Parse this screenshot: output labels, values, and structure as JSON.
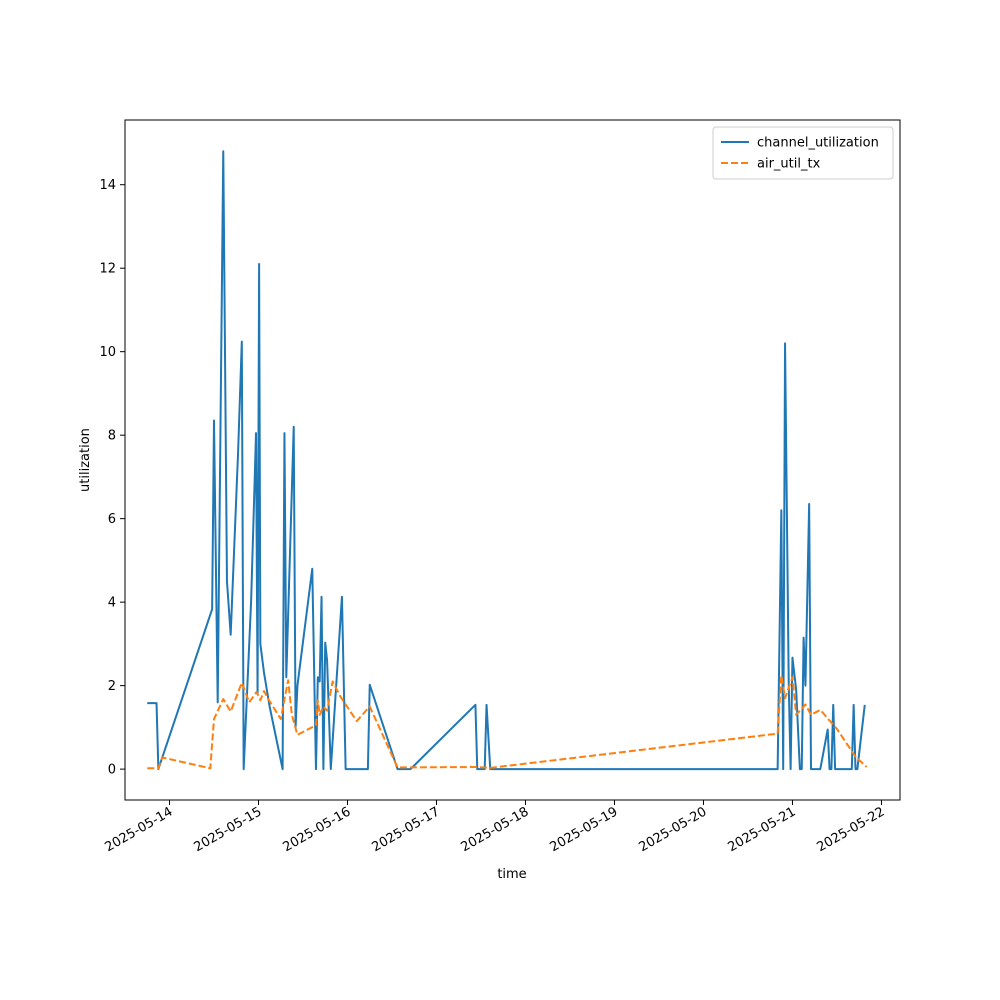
{
  "chart_data": {
    "type": "line",
    "xlabel": "time",
    "ylabel": "utilization",
    "x_axis": {
      "kind": "date",
      "range": [
        "2025-05-13 12:00",
        "2025-05-22 05:00"
      ],
      "ticks": [
        "2025-05-14",
        "2025-05-15",
        "2025-05-16",
        "2025-05-17",
        "2025-05-18",
        "2025-05-19",
        "2025-05-20",
        "2025-05-21",
        "2025-05-22"
      ]
    },
    "y_axis": {
      "range": [
        -0.74,
        15.55
      ],
      "ticks": [
        0,
        2,
        4,
        6,
        8,
        10,
        12,
        14
      ]
    },
    "grid": false,
    "legend": "top-right",
    "series": [
      {
        "name": "channel_utilization",
        "color": "#1f77b4",
        "style": "solid",
        "points": [
          [
            "2025-05-13 18:00",
            1.58
          ],
          [
            "2025-05-13 20:30",
            1.58
          ],
          [
            "2025-05-13 21:00",
            0.0
          ],
          [
            "2025-05-14 11:30",
            3.83
          ],
          [
            "2025-05-14 12:00",
            8.35
          ],
          [
            "2025-05-14 13:00",
            1.6
          ],
          [
            "2025-05-14 14:30",
            14.8
          ],
          [
            "2025-05-14 15:30",
            4.5
          ],
          [
            "2025-05-14 16:30",
            3.22
          ],
          [
            "2025-05-14 18:30",
            7.6
          ],
          [
            "2025-05-14 19:30",
            10.24
          ],
          [
            "2025-05-14 20:00",
            0.0
          ],
          [
            "2025-05-14 22:00",
            4.0
          ],
          [
            "2025-05-14 22:40",
            6.0
          ],
          [
            "2025-05-14 23:20",
            8.05
          ],
          [
            "2025-05-14 23:45",
            1.8
          ],
          [
            "2025-05-15 00:10",
            12.1
          ],
          [
            "2025-05-15 00:30",
            3.0
          ],
          [
            "2025-05-15 01:30",
            2.3
          ],
          [
            "2025-05-15 03:00",
            1.5
          ],
          [
            "2025-05-15 06:30",
            0.0
          ],
          [
            "2025-05-15 07:00",
            8.05
          ],
          [
            "2025-05-15 07:30",
            2.2
          ],
          [
            "2025-05-15 09:30",
            8.2
          ],
          [
            "2025-05-15 10:00",
            1.0
          ],
          [
            "2025-05-15 10:30",
            2.0
          ],
          [
            "2025-05-15 14:30",
            4.8
          ],
          [
            "2025-05-15 15:30",
            0.0
          ],
          [
            "2025-05-15 16:00",
            2.2
          ],
          [
            "2025-05-15 16:30",
            2.1
          ],
          [
            "2025-05-15 17:00",
            4.13
          ],
          [
            "2025-05-15 17:30",
            0.0
          ],
          [
            "2025-05-15 18:00",
            3.03
          ],
          [
            "2025-05-15 18:30",
            2.6
          ],
          [
            "2025-05-15 19:30",
            0.0
          ],
          [
            "2025-05-15 22:30",
            4.13
          ],
          [
            "2025-05-15 23:30",
            0.0
          ],
          [
            "2025-05-16 05:30",
            0.0
          ],
          [
            "2025-05-16 06:00",
            2.02
          ],
          [
            "2025-05-16 13:30",
            0.0
          ],
          [
            "2025-05-16 17:00",
            0.0
          ],
          [
            "2025-05-17 10:30",
            1.54
          ],
          [
            "2025-05-17 11:00",
            0.0
          ],
          [
            "2025-05-17 13:00",
            0.0
          ],
          [
            "2025-05-17 13:30",
            1.54
          ],
          [
            "2025-05-17 14:30",
            0.0
          ],
          [
            "2025-05-20 20:00",
            0.0
          ],
          [
            "2025-05-20 21:00",
            6.2
          ],
          [
            "2025-05-20 21:30",
            0.0
          ],
          [
            "2025-05-20 22:00",
            10.2
          ],
          [
            "2025-05-20 23:00",
            2.0
          ],
          [
            "2025-05-20 23:30",
            0.0
          ],
          [
            "2025-05-21 00:00",
            2.67
          ],
          [
            "2025-05-21 01:00",
            1.9
          ],
          [
            "2025-05-21 02:00",
            0.0
          ],
          [
            "2025-05-21 02:30",
            0.0
          ],
          [
            "2025-05-21 03:00",
            3.15
          ],
          [
            "2025-05-21 03:30",
            2.0
          ],
          [
            "2025-05-21 04:30",
            6.35
          ],
          [
            "2025-05-21 05:00",
            0.0
          ],
          [
            "2025-05-21 07:30",
            0.0
          ],
          [
            "2025-05-21 09:30",
            0.95
          ],
          [
            "2025-05-21 10:00",
            0.0
          ],
          [
            "2025-05-21 10:30",
            0.0
          ],
          [
            "2025-05-21 11:00",
            1.54
          ],
          [
            "2025-05-21 11:30",
            0.0
          ],
          [
            "2025-05-21 16:00",
            0.0
          ],
          [
            "2025-05-21 16:30",
            1.54
          ],
          [
            "2025-05-21 17:00",
            0.0
          ],
          [
            "2025-05-21 17:30",
            0.0
          ],
          [
            "2025-05-21 19:30",
            1.54
          ]
        ]
      },
      {
        "name": "air_util_tx",
        "color": "#ff7f0e",
        "style": "dashed",
        "points": [
          [
            "2025-05-13 18:00",
            0.02
          ],
          [
            "2025-05-13 21:00",
            0.02
          ],
          [
            "2025-05-13 22:00",
            0.28
          ],
          [
            "2025-05-14 11:00",
            0.02
          ],
          [
            "2025-05-14 12:00",
            1.2
          ],
          [
            "2025-05-14 14:30",
            1.68
          ],
          [
            "2025-05-14 16:30",
            1.38
          ],
          [
            "2025-05-14 19:30",
            2.07
          ],
          [
            "2025-05-14 21:30",
            1.6
          ],
          [
            "2025-05-14 23:30",
            1.85
          ],
          [
            "2025-05-15 00:30",
            1.65
          ],
          [
            "2025-05-15 01:30",
            1.87
          ],
          [
            "2025-05-15 02:30",
            1.7
          ],
          [
            "2025-05-15 06:00",
            1.2
          ],
          [
            "2025-05-15 08:00",
            2.13
          ],
          [
            "2025-05-15 09:00",
            1.3
          ],
          [
            "2025-05-15 10:30",
            0.82
          ],
          [
            "2025-05-15 15:30",
            1.05
          ],
          [
            "2025-05-15 16:00",
            1.65
          ],
          [
            "2025-05-15 16:30",
            1.3
          ],
          [
            "2025-05-15 17:30",
            1.5
          ],
          [
            "2025-05-15 18:30",
            1.4
          ],
          [
            "2025-05-15 20:00",
            2.1
          ],
          [
            "2025-05-15 22:00",
            1.75
          ],
          [
            "2025-05-16 02:30",
            1.15
          ],
          [
            "2025-05-16 06:00",
            1.5
          ],
          [
            "2025-05-16 13:30",
            0.04
          ],
          [
            "2025-05-17 11:00",
            0.05
          ],
          [
            "2025-05-17 14:30",
            0.03
          ],
          [
            "2025-05-20 20:00",
            0.85
          ],
          [
            "2025-05-20 21:00",
            2.25
          ],
          [
            "2025-05-20 22:00",
            1.7
          ],
          [
            "2025-05-21 00:00",
            2.2
          ],
          [
            "2025-05-21 01:00",
            1.3
          ],
          [
            "2025-05-21 03:30",
            1.55
          ],
          [
            "2025-05-21 05:00",
            1.3
          ],
          [
            "2025-05-21 07:30",
            1.42
          ],
          [
            "2025-05-21 12:00",
            0.96
          ],
          [
            "2025-05-21 17:00",
            0.3
          ],
          [
            "2025-05-21 20:00",
            0.05
          ]
        ]
      }
    ]
  }
}
